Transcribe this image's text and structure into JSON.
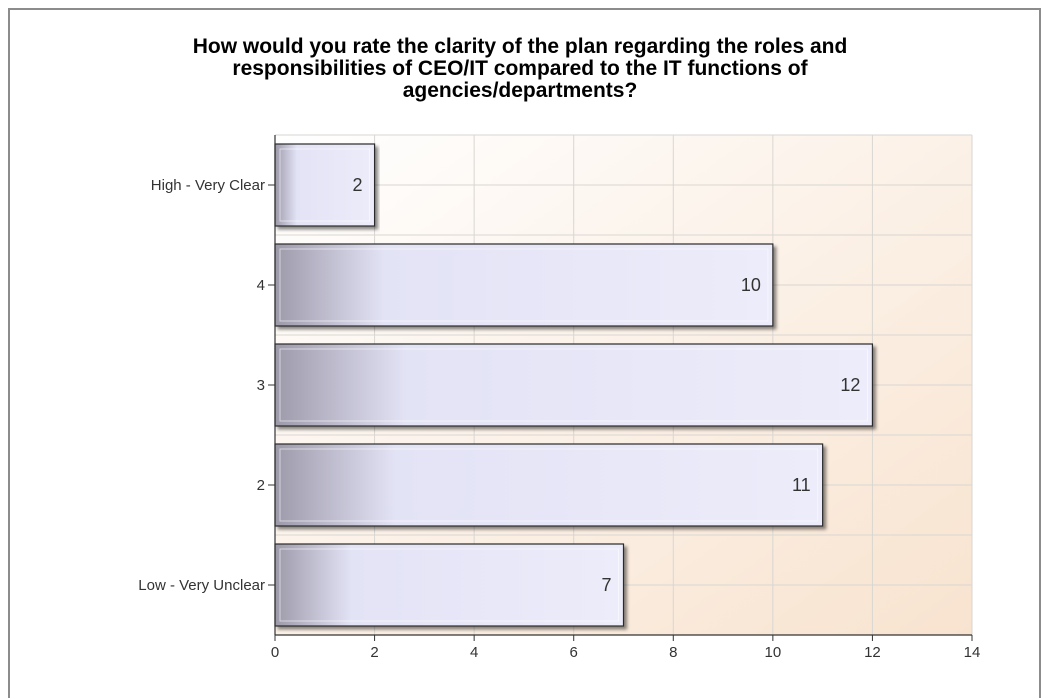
{
  "chart_data": {
    "type": "bar",
    "orientation": "horizontal",
    "title_lines": [
      "How would you rate the clarity of the plan regarding the roles and",
      "responsibilities of CEO/IT compared to the IT functions of",
      "agencies/departments?"
    ],
    "categories": [
      "High - Very Clear",
      "4",
      "3",
      "2",
      "Low - Very Unclear"
    ],
    "values": [
      2,
      10,
      12,
      11,
      7
    ],
    "xlim": [
      0,
      14
    ],
    "xticks": [
      0,
      2,
      4,
      6,
      8,
      10,
      12,
      14
    ],
    "grid": true,
    "data_labels": true,
    "xlabel": "",
    "ylabel": ""
  },
  "colors": {
    "bar_dark": "#9d9aaa",
    "bar_light": "#e6e6f7",
    "bar_border": "#2b2b2b",
    "plot_bg_top": "#ffffff",
    "plot_bg_bottom": "#f8e3cf",
    "grid": "#d9d6d2"
  }
}
